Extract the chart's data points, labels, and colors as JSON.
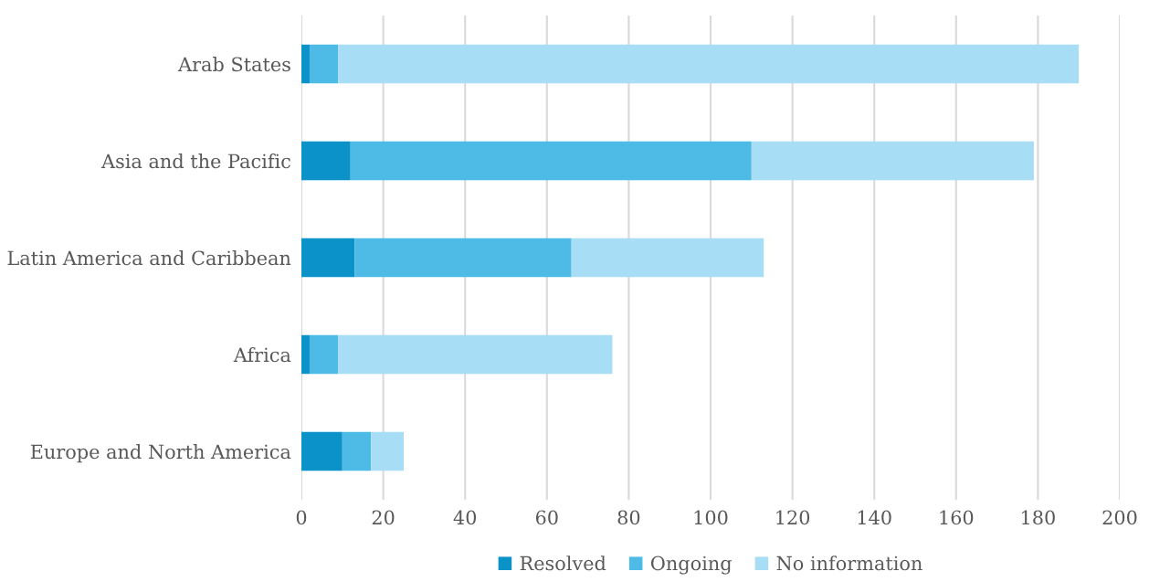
{
  "chart_data": {
    "type": "bar",
    "orientation": "horizontal",
    "stacked": true,
    "categories": [
      "Arab States",
      "Asia and the Pacific",
      "Latin America and Caribbean",
      "Africa",
      "Europe and North America"
    ],
    "series": [
      {
        "name": "Resolved",
        "color": "#0b93c9",
        "values": [
          2,
          12,
          13,
          2,
          10
        ]
      },
      {
        "name": "Ongoing",
        "color": "#4dbbe6",
        "values": [
          7,
          98,
          53,
          7,
          7
        ]
      },
      {
        "name": "No information",
        "color": "#a8def5",
        "values": [
          181,
          69,
          47,
          67,
          8
        ]
      }
    ],
    "xlim": [
      0,
      200
    ],
    "xticks": [
      0,
      20,
      40,
      60,
      80,
      100,
      120,
      140,
      160,
      180,
      200
    ],
    "grid": "x",
    "legend": "bottom"
  }
}
